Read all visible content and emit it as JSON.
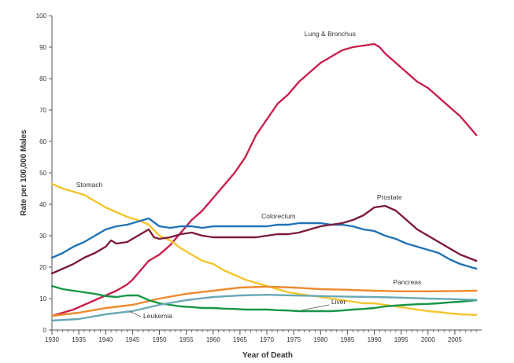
{
  "chart_data": {
    "type": "line",
    "title": "",
    "xlabel": "Year of Death",
    "ylabel": "Rate per 100,000 Males",
    "xlim": [
      1930,
      2010
    ],
    "ylim": [
      0,
      100
    ],
    "x_ticks": [
      1930,
      1935,
      1940,
      1945,
      1950,
      1955,
      1960,
      1965,
      1970,
      1975,
      1980,
      1985,
      1990,
      1995,
      2000,
      2005
    ],
    "y_ticks": [
      0,
      10,
      20,
      30,
      40,
      50,
      60,
      70,
      80,
      90,
      100
    ],
    "grid": false,
    "legend": "none (series labelled directly on chart)",
    "series": [
      {
        "name": "Lung & Bronchus",
        "color": "#c8204b",
        "points": [
          [
            1930,
            4.5
          ],
          [
            1932,
            5.5
          ],
          [
            1934,
            6.5
          ],
          [
            1936,
            8
          ],
          [
            1938,
            9.5
          ],
          [
            1940,
            11
          ],
          [
            1942,
            12.5
          ],
          [
            1944,
            14.5
          ],
          [
            1945,
            16
          ],
          [
            1946,
            18
          ],
          [
            1948,
            22
          ],
          [
            1950,
            24
          ],
          [
            1952,
            27
          ],
          [
            1954,
            31
          ],
          [
            1956,
            35
          ],
          [
            1958,
            38
          ],
          [
            1960,
            42
          ],
          [
            1962,
            46
          ],
          [
            1964,
            50
          ],
          [
            1966,
            55
          ],
          [
            1968,
            62
          ],
          [
            1970,
            67
          ],
          [
            1972,
            72
          ],
          [
            1974,
            75
          ],
          [
            1976,
            79
          ],
          [
            1978,
            82
          ],
          [
            1980,
            85
          ],
          [
            1982,
            87
          ],
          [
            1984,
            89
          ],
          [
            1986,
            90
          ],
          [
            1988,
            90.5
          ],
          [
            1990,
            91
          ],
          [
            1991,
            90
          ],
          [
            1992,
            88
          ],
          [
            1994,
            85
          ],
          [
            1996,
            82
          ],
          [
            1998,
            79
          ],
          [
            2000,
            77
          ],
          [
            2002,
            74
          ],
          [
            2004,
            71
          ],
          [
            2006,
            68
          ],
          [
            2008,
            64
          ],
          [
            2009,
            62
          ]
        ]
      },
      {
        "name": "Stomach",
        "color": "#f5c52c",
        "points": [
          [
            1930,
            46.5
          ],
          [
            1932,
            45
          ],
          [
            1934,
            44
          ],
          [
            1936,
            43
          ],
          [
            1938,
            41
          ],
          [
            1940,
            39
          ],
          [
            1942,
            37.5
          ],
          [
            1944,
            36
          ],
          [
            1946,
            35
          ],
          [
            1948,
            33.5
          ],
          [
            1950,
            30
          ],
          [
            1952,
            28.5
          ],
          [
            1954,
            26
          ],
          [
            1956,
            24
          ],
          [
            1958,
            22
          ],
          [
            1960,
            21
          ],
          [
            1962,
            19
          ],
          [
            1964,
            17.5
          ],
          [
            1966,
            16
          ],
          [
            1968,
            15
          ],
          [
            1970,
            14
          ],
          [
            1972,
            13
          ],
          [
            1974,
            12
          ],
          [
            1976,
            11.5
          ],
          [
            1978,
            11
          ],
          [
            1980,
            10.5
          ],
          [
            1982,
            10
          ],
          [
            1984,
            9.5
          ],
          [
            1986,
            9
          ],
          [
            1988,
            8.5
          ],
          [
            1990,
            8.5
          ],
          [
            1992,
            8
          ],
          [
            1994,
            7.5
          ],
          [
            1996,
            7
          ],
          [
            1998,
            6.5
          ],
          [
            2000,
            6
          ],
          [
            2002,
            5.7
          ],
          [
            2004,
            5.3
          ],
          [
            2006,
            5
          ],
          [
            2009,
            4.8
          ]
        ]
      },
      {
        "name": "Colorectum",
        "color": "#1f72b8",
        "points": [
          [
            1930,
            23
          ],
          [
            1932,
            24.5
          ],
          [
            1934,
            26.5
          ],
          [
            1936,
            28
          ],
          [
            1938,
            30
          ],
          [
            1940,
            32
          ],
          [
            1942,
            33
          ],
          [
            1944,
            33.5
          ],
          [
            1946,
            34.5
          ],
          [
            1948,
            35.5
          ],
          [
            1950,
            33
          ],
          [
            1952,
            32.5
          ],
          [
            1954,
            33
          ],
          [
            1956,
            33
          ],
          [
            1958,
            32.5
          ],
          [
            1960,
            33
          ],
          [
            1962,
            33
          ],
          [
            1964,
            33
          ],
          [
            1966,
            33
          ],
          [
            1968,
            33
          ],
          [
            1970,
            33
          ],
          [
            1972,
            33.5
          ],
          [
            1974,
            33.5
          ],
          [
            1976,
            34
          ],
          [
            1978,
            34
          ],
          [
            1980,
            34
          ],
          [
            1982,
            33.5
          ],
          [
            1984,
            33.5
          ],
          [
            1986,
            33
          ],
          [
            1988,
            32
          ],
          [
            1990,
            31.5
          ],
          [
            1992,
            30
          ],
          [
            1994,
            29
          ],
          [
            1996,
            27.5
          ],
          [
            1998,
            26.5
          ],
          [
            2000,
            25.5
          ],
          [
            2002,
            24.5
          ],
          [
            2004,
            22.5
          ],
          [
            2006,
            21
          ],
          [
            2009,
            19.5
          ]
        ]
      },
      {
        "name": "Prostate",
        "color": "#7d1a3c",
        "points": [
          [
            1930,
            18
          ],
          [
            1932,
            19.5
          ],
          [
            1934,
            21
          ],
          [
            1936,
            23
          ],
          [
            1938,
            24.5
          ],
          [
            1940,
            26.5
          ],
          [
            1941,
            28.5
          ],
          [
            1942,
            27.5
          ],
          [
            1944,
            28
          ],
          [
            1946,
            30
          ],
          [
            1948,
            32
          ],
          [
            1949,
            29.5
          ],
          [
            1950,
            29
          ],
          [
            1952,
            29.5
          ],
          [
            1954,
            30.5
          ],
          [
            1956,
            31
          ],
          [
            1958,
            30
          ],
          [
            1960,
            29.5
          ],
          [
            1962,
            29.5
          ],
          [
            1964,
            29.5
          ],
          [
            1966,
            29.5
          ],
          [
            1968,
            29.5
          ],
          [
            1970,
            30
          ],
          [
            1972,
            30.5
          ],
          [
            1974,
            30.5
          ],
          [
            1976,
            31
          ],
          [
            1978,
            32
          ],
          [
            1980,
            33
          ],
          [
            1982,
            33.5
          ],
          [
            1984,
            34
          ],
          [
            1986,
            35
          ],
          [
            1988,
            36.5
          ],
          [
            1990,
            39
          ],
          [
            1992,
            39.5
          ],
          [
            1994,
            38
          ],
          [
            1996,
            35
          ],
          [
            1998,
            32
          ],
          [
            2000,
            30
          ],
          [
            2002,
            28
          ],
          [
            2004,
            26
          ],
          [
            2006,
            24
          ],
          [
            2009,
            22
          ]
        ]
      },
      {
        "name": "Pancreas",
        "color": "#ef8a2e",
        "points": [
          [
            1930,
            4.5
          ],
          [
            1935,
            5.5
          ],
          [
            1940,
            7
          ],
          [
            1945,
            8
          ],
          [
            1950,
            10
          ],
          [
            1955,
            11.5
          ],
          [
            1960,
            12.5
          ],
          [
            1965,
            13.5
          ],
          [
            1970,
            13.8
          ],
          [
            1975,
            13.5
          ],
          [
            1980,
            13
          ],
          [
            1985,
            12.8
          ],
          [
            1990,
            12.5
          ],
          [
            1995,
            12.3
          ],
          [
            2000,
            12.3
          ],
          [
            2005,
            12.4
          ],
          [
            2009,
            12.5
          ]
        ]
      },
      {
        "name": "Liver",
        "color": "#159646",
        "points": [
          [
            1930,
            14
          ],
          [
            1932,
            13
          ],
          [
            1934,
            12.5
          ],
          [
            1936,
            12
          ],
          [
            1938,
            11.5
          ],
          [
            1940,
            10.8
          ],
          [
            1942,
            10.5
          ],
          [
            1944,
            11
          ],
          [
            1946,
            11
          ],
          [
            1948,
            9.5
          ],
          [
            1950,
            8.5
          ],
          [
            1952,
            8
          ],
          [
            1954,
            7.5
          ],
          [
            1956,
            7.3
          ],
          [
            1958,
            7
          ],
          [
            1960,
            7
          ],
          [
            1962,
            6.8
          ],
          [
            1964,
            6.7
          ],
          [
            1966,
            6.5
          ],
          [
            1968,
            6.5
          ],
          [
            1970,
            6.5
          ],
          [
            1972,
            6.3
          ],
          [
            1974,
            6.2
          ],
          [
            1976,
            6
          ],
          [
            1978,
            6
          ],
          [
            1980,
            6
          ],
          [
            1982,
            6
          ],
          [
            1984,
            6.2
          ],
          [
            1986,
            6.5
          ],
          [
            1988,
            6.7
          ],
          [
            1990,
            7
          ],
          [
            1992,
            7.5
          ],
          [
            1994,
            7.8
          ],
          [
            1996,
            8
          ],
          [
            1998,
            8.2
          ],
          [
            2000,
            8.3
          ],
          [
            2002,
            8.5
          ],
          [
            2004,
            8.8
          ],
          [
            2006,
            9
          ],
          [
            2009,
            9.5
          ]
        ]
      },
      {
        "name": "Leukemia",
        "color": "#6aa9b6",
        "points": [
          [
            1930,
            3
          ],
          [
            1935,
            3.5
          ],
          [
            1940,
            5
          ],
          [
            1945,
            6
          ],
          [
            1950,
            8
          ],
          [
            1955,
            9.5
          ],
          [
            1960,
            10.5
          ],
          [
            1965,
            11
          ],
          [
            1970,
            11.2
          ],
          [
            1975,
            11
          ],
          [
            1980,
            10.8
          ],
          [
            1985,
            10.6
          ],
          [
            1990,
            10.5
          ],
          [
            1995,
            10.3
          ],
          [
            2000,
            10
          ],
          [
            2005,
            9.8
          ],
          [
            2009,
            9.6
          ]
        ]
      }
    ],
    "annotations": [
      {
        "text": "Lung & Bronchus",
        "x": 1977,
        "y": 93.5
      },
      {
        "text": "Stomach",
        "x": 1934.5,
        "y": 45.5
      },
      {
        "text": "Colorectum",
        "x": 1969,
        "y": 35.5
      },
      {
        "text": "Prostate",
        "x": 1990.5,
        "y": 41.5
      },
      {
        "text": "Pancreas",
        "x": 1993.5,
        "y": 14.5
      },
      {
        "text": "Liver",
        "x": 1982,
        "y": 8.3
      },
      {
        "text": "Leukemia",
        "x": 1947,
        "y": 3.8
      }
    ]
  }
}
